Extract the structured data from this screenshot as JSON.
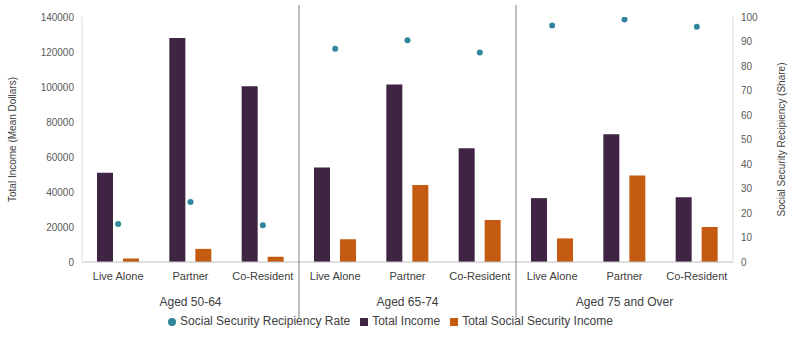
{
  "chart_data": {
    "type": "bar",
    "categories": [
      "Live Alone",
      "Partner",
      "Co-Resident",
      "Live Alone",
      "Partner",
      "Co-Resident",
      "Live Alone",
      "Partner",
      "Co-Resident"
    ],
    "category_groups": [
      "Aged 50-64",
      "Aged 50-64",
      "Aged 50-64",
      "Aged 65-74",
      "Aged 65-74",
      "Aged 65-74",
      "Aged 75 and Over",
      "Aged 75 and Over",
      "Aged 75 and Over"
    ],
    "y_label": "Total Income (Mean Dollars)",
    "y2_label": "Social Security Recipiency (Share)",
    "series": [
      {
        "name": "Total Income",
        "type": "bar",
        "color": "#3f2543",
        "values": [
          51000,
          128000,
          100500,
          54000,
          101500,
          65000,
          36500,
          73000,
          37000
        ]
      },
      {
        "name": "Total Social Security Income",
        "type": "bar",
        "color": "#c55a11",
        "values": [
          2000,
          7500,
          3000,
          13000,
          44000,
          24000,
          13500,
          49500,
          20000
        ]
      },
      {
        "name": "Social Security Recipiency Rate",
        "type": "scatter",
        "axis": "y2",
        "marker": "circle",
        "color": "#31859c",
        "values": [
          15.5,
          24.5,
          15,
          87,
          90.5,
          85.5,
          96.5,
          99,
          96
        ]
      }
    ],
    "ylim": [
      0,
      140000
    ],
    "yticks": [
      0,
      20000,
      40000,
      60000,
      80000,
      100000,
      120000,
      140000
    ],
    "y2lim": [
      0,
      100
    ],
    "y2ticks": [
      0,
      10,
      20,
      30,
      40,
      50,
      60,
      70,
      80,
      90,
      100
    ],
    "grid": false,
    "legend": "bottom"
  }
}
